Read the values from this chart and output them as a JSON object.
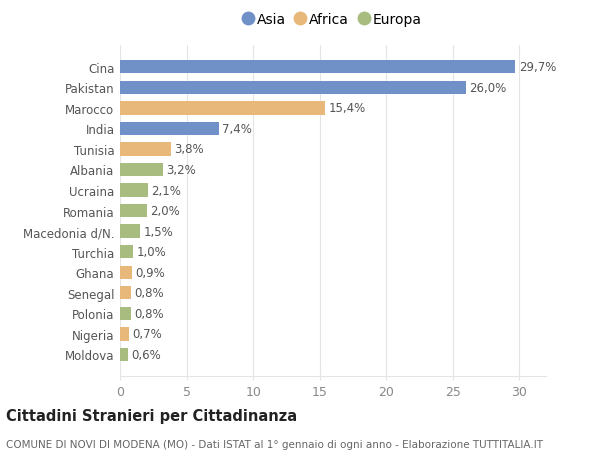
{
  "countries": [
    "Cina",
    "Pakistan",
    "Marocco",
    "India",
    "Tunisia",
    "Albania",
    "Ucraina",
    "Romania",
    "Macedonia d/N.",
    "Turchia",
    "Ghana",
    "Senegal",
    "Polonia",
    "Nigeria",
    "Moldova"
  ],
  "values": [
    29.7,
    26.0,
    15.4,
    7.4,
    3.8,
    3.2,
    2.1,
    2.0,
    1.5,
    1.0,
    0.9,
    0.8,
    0.8,
    0.7,
    0.6
  ],
  "labels": [
    "29,7%",
    "26,0%",
    "15,4%",
    "7,4%",
    "3,8%",
    "3,2%",
    "2,1%",
    "2,0%",
    "1,5%",
    "1,0%",
    "0,9%",
    "0,8%",
    "0,8%",
    "0,7%",
    "0,6%"
  ],
  "continents": [
    "Asia",
    "Asia",
    "Africa",
    "Asia",
    "Africa",
    "Europa",
    "Europa",
    "Europa",
    "Europa",
    "Europa",
    "Africa",
    "Africa",
    "Europa",
    "Africa",
    "Europa"
  ],
  "colors": {
    "Asia": "#7090c8",
    "Africa": "#e8b87a",
    "Europa": "#a8bc80"
  },
  "bg_color": "#ffffff",
  "grid_color": "#e4e4e4",
  "title": "Cittadini Stranieri per Cittadinanza",
  "subtitle": "COMUNE DI NOVI DI MODENA (MO) - Dati ISTAT al 1° gennaio di ogni anno - Elaborazione TUTTITALIA.IT",
  "xlim": [
    0,
    32
  ],
  "xticks": [
    0,
    5,
    10,
    15,
    20,
    25,
    30
  ],
  "label_color": "#555555",
  "tick_color": "#888888",
  "title_fontsize": 10.5,
  "subtitle_fontsize": 7.5,
  "bar_label_fontsize": 8.5,
  "ytick_fontsize": 8.5,
  "xtick_fontsize": 9,
  "legend_fontsize": 10,
  "bar_height": 0.65
}
